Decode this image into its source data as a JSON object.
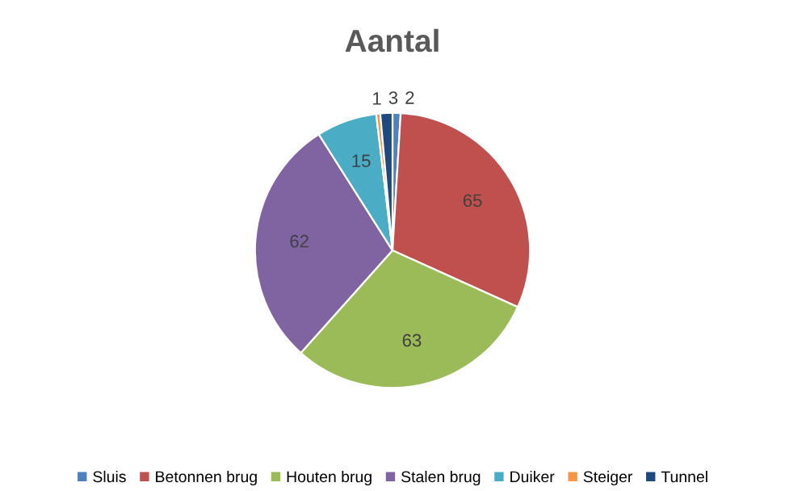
{
  "chart_data": {
    "type": "pie",
    "title": "Aantal",
    "categories": [
      "Sluis",
      "Betonnen brug",
      "Houten brug",
      "Stalen brug",
      "Duiker",
      "Steiger",
      "Tunnel"
    ],
    "values": [
      2,
      65,
      63,
      62,
      15,
      1,
      3
    ],
    "colors": [
      "#4f81bd",
      "#c0504d",
      "#9bbb59",
      "#8064a2",
      "#4bacc6",
      "#f79646",
      "#1f497d"
    ],
    "data_labels": true,
    "legend": "bottom"
  }
}
